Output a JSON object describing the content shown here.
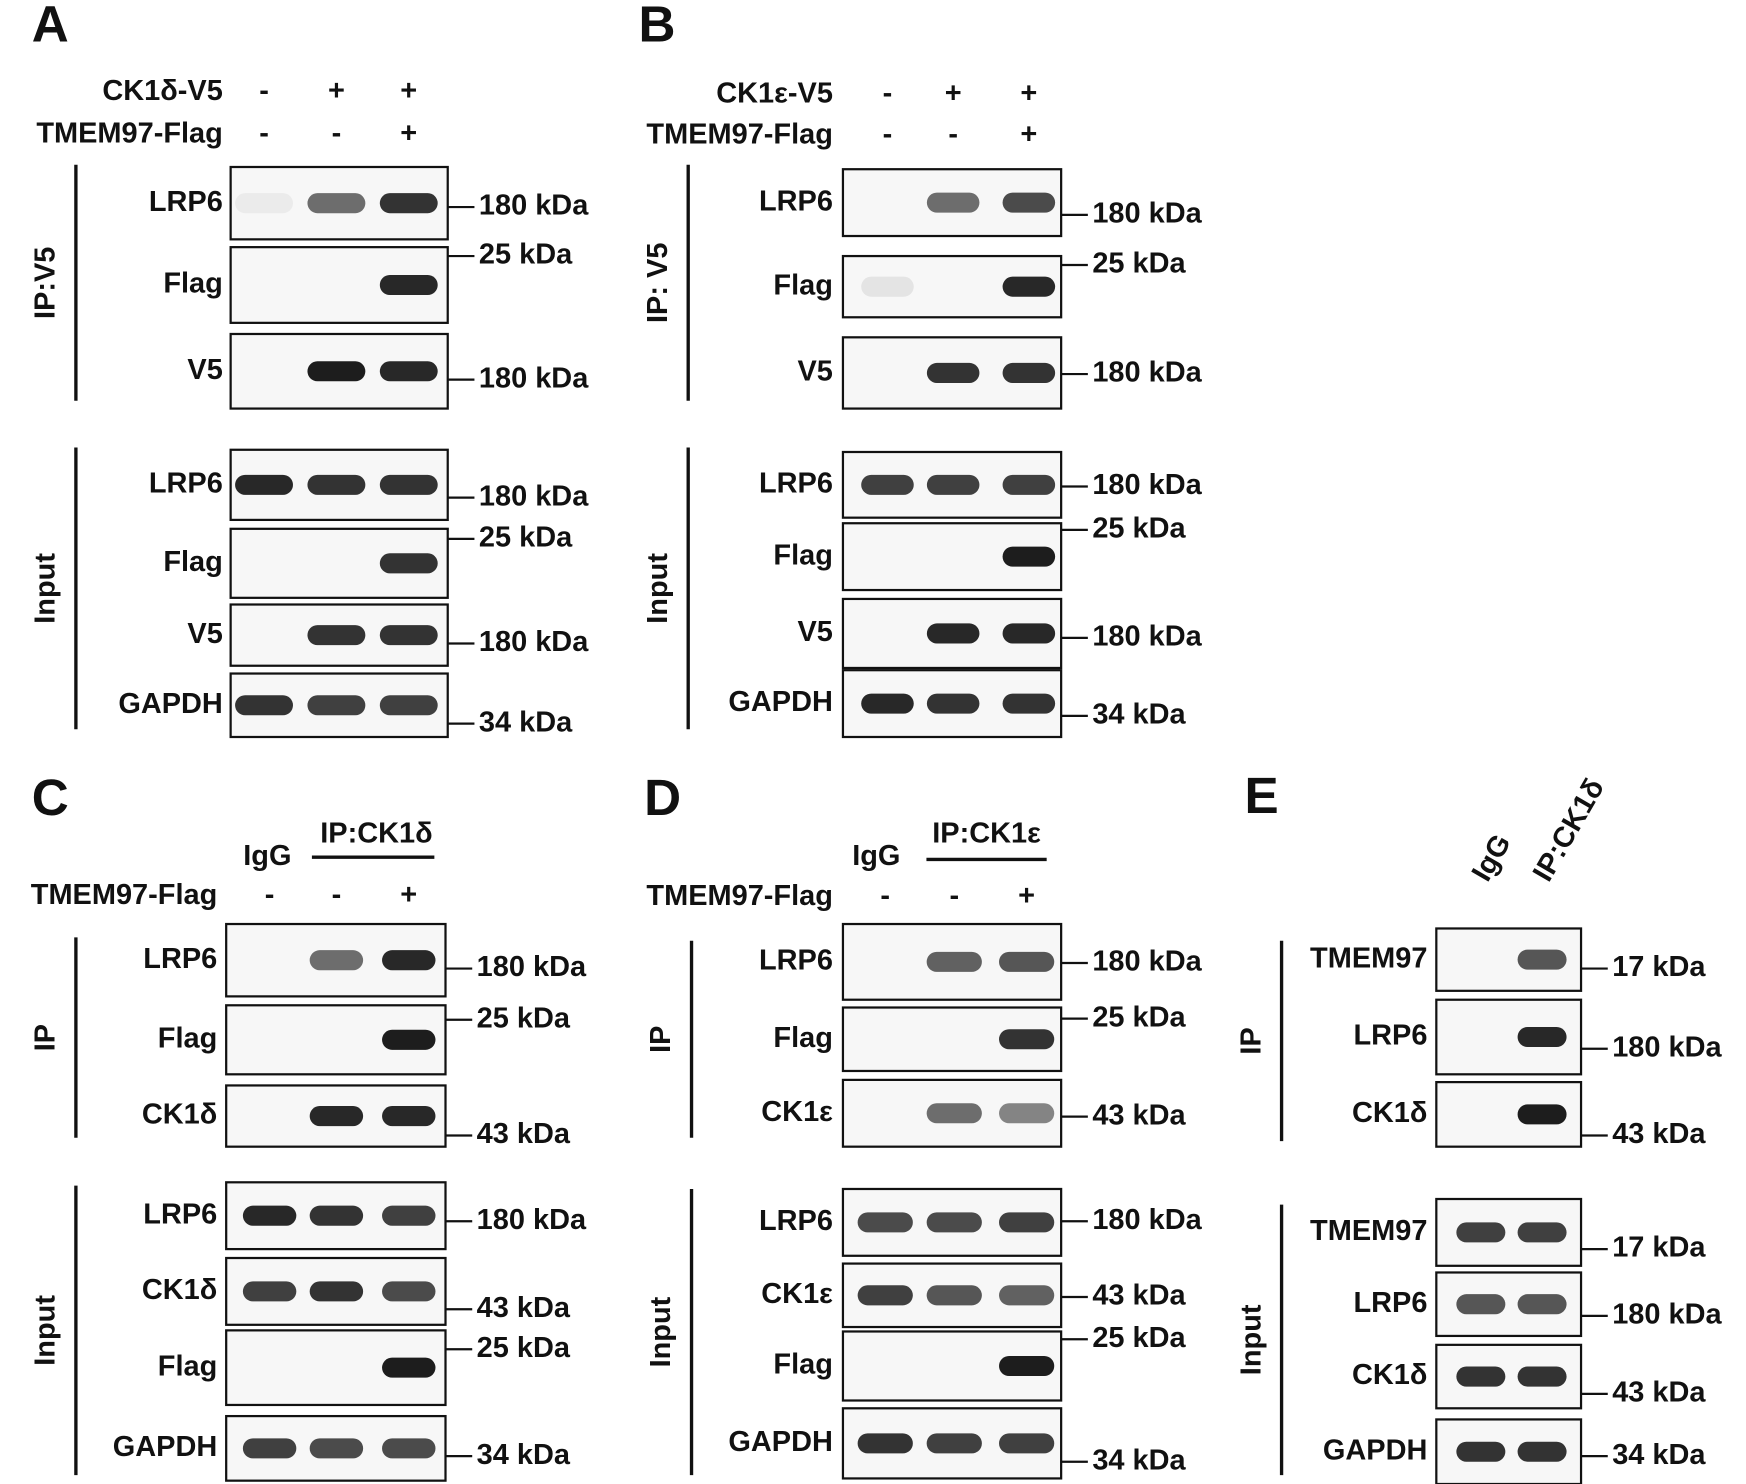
{
  "panels": [
    {
      "letter": "A",
      "conditions": [
        {
          "label": "CK1δ-V5",
          "signs": [
            "-",
            "+",
            "+"
          ]
        },
        {
          "label": "TMEM97-Flag",
          "signs": [
            "-",
            "-",
            "+"
          ]
        }
      ],
      "groups": [
        {
          "label": "IP:V5",
          "blots": [
            {
              "label": "LRP6",
              "marker": "180 kDa"
            },
            {
              "label": "Flag",
              "marker": "25 kDa"
            },
            {
              "label": "V5",
              "marker": "180 kDa"
            }
          ]
        },
        {
          "label": "Input",
          "blots": [
            {
              "label": "LRP6",
              "marker": "180 kDa"
            },
            {
              "label": "Flag",
              "marker": "25 kDa"
            },
            {
              "label": "V5",
              "marker": "180 kDa"
            },
            {
              "label": "GAPDH",
              "marker": "34 kDa"
            }
          ]
        }
      ]
    },
    {
      "letter": "B",
      "conditions": [
        {
          "label": "CK1ε-V5",
          "signs": [
            "-",
            "+",
            "+"
          ]
        },
        {
          "label": "TMEM97-Flag",
          "signs": [
            "-",
            "-",
            "+"
          ]
        }
      ],
      "groups": [
        {
          "label": "IP: V5",
          "blots": [
            {
              "label": "LRP6",
              "marker": "180 kDa"
            },
            {
              "label": "Flag",
              "marker": "25 kDa"
            },
            {
              "label": "V5",
              "marker": "180 kDa"
            }
          ]
        },
        {
          "label": "Input",
          "blots": [
            {
              "label": "LRP6",
              "marker": "180 kDa"
            },
            {
              "label": "Flag",
              "marker": "25 kDa"
            },
            {
              "label": "V5",
              "marker": "180 kDa"
            },
            {
              "label": "GAPDH",
              "marker": "34 kDa"
            }
          ]
        }
      ]
    },
    {
      "letter": "C",
      "headers": {
        "igg": "IgG",
        "ip": "IP:CK1δ"
      },
      "conditions": [
        {
          "label": "TMEM97-Flag",
          "signs": [
            "-",
            "-",
            "+"
          ]
        }
      ],
      "groups": [
        {
          "label": "IP",
          "blots": [
            {
              "label": "LRP6",
              "marker": "180 kDa"
            },
            {
              "label": "Flag",
              "marker": "25 kDa"
            },
            {
              "label": "CK1δ",
              "marker": "43 kDa"
            }
          ]
        },
        {
          "label": "Input",
          "blots": [
            {
              "label": "LRP6",
              "marker": "180 kDa"
            },
            {
              "label": "CK1δ",
              "marker": "43 kDa"
            },
            {
              "label": "Flag",
              "marker": "25 kDa"
            },
            {
              "label": "GAPDH",
              "marker": "34 kDa"
            }
          ]
        }
      ]
    },
    {
      "letter": "D",
      "headers": {
        "igg": "IgG",
        "ip": "IP:CK1ε"
      },
      "conditions": [
        {
          "label": "TMEM97-Flag",
          "signs": [
            "-",
            "-",
            "+"
          ]
        }
      ],
      "groups": [
        {
          "label": "IP",
          "blots": [
            {
              "label": "LRP6",
              "marker": "180 kDa"
            },
            {
              "label": "Flag",
              "marker": "25 kDa"
            },
            {
              "label": "CK1ε",
              "marker": "43 kDa"
            }
          ]
        },
        {
          "label": "Input",
          "blots": [
            {
              "label": "LRP6",
              "marker": "180 kDa"
            },
            {
              "label": "CK1ε",
              "marker": "43 kDa"
            },
            {
              "label": "Flag",
              "marker": "25 kDa"
            },
            {
              "label": "GAPDH",
              "marker": "34 kDa"
            }
          ]
        }
      ]
    },
    {
      "letter": "E",
      "headers": {
        "igg": "IgG",
        "ip": "IP:CK1δ"
      },
      "conditions": [],
      "groups": [
        {
          "label": "IP",
          "blots": [
            {
              "label": "TMEM97",
              "marker": "17 kDa"
            },
            {
              "label": "LRP6",
              "marker": "180 kDa"
            },
            {
              "label": "CK1δ",
              "marker": "43 kDa"
            }
          ]
        },
        {
          "label": "Input",
          "blots": [
            {
              "label": "TMEM97",
              "marker": "17 kDa"
            },
            {
              "label": "LRP6",
              "marker": "180 kDa"
            },
            {
              "label": "CK1δ",
              "marker": "43 kDa"
            },
            {
              "label": "GAPDH",
              "marker": "34 kDa"
            }
          ]
        }
      ]
    }
  ]
}
